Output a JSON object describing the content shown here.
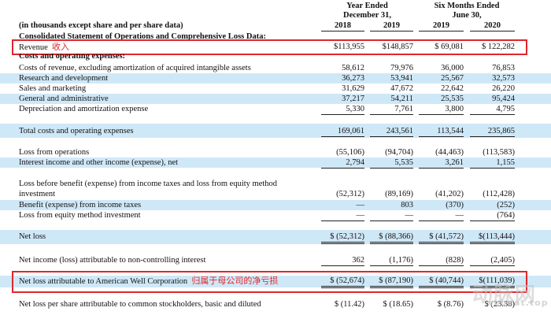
{
  "header": {
    "units_note": "(in thousands except share and per share data)",
    "group1_line1": "Year Ended",
    "group1_line2": "December 31,",
    "group2_line1": "Six Months Ended",
    "group2_line2": "June 30,",
    "years": [
      "2018",
      "2019",
      "2019",
      "2020"
    ]
  },
  "section_title": "Consolidated Statement of Operations and Comprehensive Loss Data:",
  "costs_title": "Costs and operating expenses:",
  "rows": {
    "revenue": {
      "label": "Revenue",
      "values": [
        "$113,955",
        "$148,857",
        "$ 69,081",
        "$ 122,282"
      ]
    },
    "cost_of_revenue": {
      "label": "Costs of revenue, excluding amortization of acquired intangible assets",
      "values": [
        "58,612",
        "79,976",
        "36,000",
        "76,853"
      ]
    },
    "rnd": {
      "label": "Research and development",
      "values": [
        "36,273",
        "53,941",
        "25,567",
        "32,573"
      ]
    },
    "sales": {
      "label": "Sales and marketing",
      "values": [
        "31,629",
        "47,672",
        "22,642",
        "26,220"
      ]
    },
    "gna": {
      "label": "General and administrative",
      "values": [
        "37,217",
        "54,211",
        "25,535",
        "95,424"
      ]
    },
    "dep": {
      "label": "Depreciation and amortization expense",
      "values": [
        "5,330",
        "7,761",
        "3,800",
        "4,795"
      ]
    },
    "total_costs": {
      "label": "Total costs and operating expenses",
      "values": [
        "169,061",
        "243,561",
        "113,544",
        "235,865"
      ]
    },
    "loss_ops": {
      "label": "Loss from operations",
      "values": [
        "(55,106)",
        "(94,704)",
        "(44,463)",
        "(113,583)"
      ]
    },
    "interest": {
      "label": "Interest income and other income (expense), net",
      "values": [
        "2,794",
        "5,535",
        "3,261",
        "1,155"
      ]
    },
    "loss_before": {
      "label": "Loss before benefit (expense) from income taxes and loss from equity method investment",
      "values": [
        "(52,312)",
        "(89,169)",
        "(41,202)",
        "(112,428)"
      ]
    },
    "benefit": {
      "label": "Benefit (expense) from income taxes",
      "values": [
        "—",
        "803",
        "(370)",
        "(252)"
      ]
    },
    "equity_loss": {
      "label": "Loss from equity method investment",
      "values": [
        "—",
        "—",
        "—",
        "(764)"
      ]
    },
    "net_loss": {
      "label": "Net loss",
      "values": [
        "$ (52,312)",
        "$ (88,366)",
        "$ (41,572)",
        "$(113,444)"
      ]
    },
    "nci": {
      "label": "Net income (loss) attributable to non-controlling interest",
      "values": [
        "362",
        "(1,176)",
        "(828)",
        "(2,405)"
      ]
    },
    "net_loss_awc": {
      "label": "Net loss attributable to American Well Corporation",
      "values": [
        "$ (52,674)",
        "$ (87,190)",
        "$ (40,744)",
        "$(111,039)"
      ]
    },
    "eps": {
      "label": "Net loss per share attributable to common stockholders, basic and diluted",
      "values": [
        "$ (11.42)",
        "$ (18.65)",
        "$ (8.76)",
        "$ (23.38)"
      ]
    }
  },
  "annotations": {
    "revenue": "收入",
    "net_loss_awc": "归属于母公司的净亏损"
  },
  "watermark": {
    "main": "动脉网",
    "sub": "vcbeat.top"
  },
  "colors": {
    "highlight_box": "#e0262b",
    "row_shade": "#cfe8f7"
  }
}
